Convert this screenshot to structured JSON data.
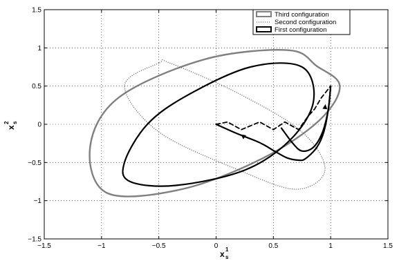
{
  "chart_data": {
    "type": "line",
    "xlim": [
      -1.5,
      1.5
    ],
    "ylim": [
      -1.5,
      1.5
    ],
    "xticks": [
      "−1.5",
      "−1",
      "−0.5",
      "0",
      "0.5",
      "1",
      "1.5"
    ],
    "yticks": [
      "−1.5",
      "−1",
      "−0.5",
      "0",
      "0.5",
      "1",
      "1.5"
    ],
    "xlabel": "x",
    "xlabel_sup": "1",
    "xlabel_sub": "s",
    "ylabel": "x",
    "ylabel_sup": "2",
    "ylabel_sub": "s",
    "grid": true,
    "grid_style": "dotted",
    "legend_placement": "top-right",
    "colors": {
      "third": "#808080",
      "second": "#666666",
      "first": "#000000"
    },
    "series": [
      {
        "name": "Third configuration",
        "style": "solid-gray",
        "x": [
          0.88,
          1.08,
          0.9,
          0.4,
          -0.3,
          -0.95,
          -1.1,
          -0.85,
          -0.1,
          0.63,
          0.88
        ],
        "y": [
          0.76,
          0.5,
          0.05,
          -0.45,
          -0.85,
          -0.9,
          -0.3,
          0.35,
          0.85,
          0.97,
          0.76
        ]
      },
      {
        "name": "Second configuration",
        "style": "dotted",
        "x": [
          -0.5,
          -0.8,
          -0.5,
          0.2,
          0.7,
          0.95,
          0.75,
          0.2,
          -0.4,
          -0.5
        ],
        "y": [
          0.8,
          0.5,
          -0.1,
          -0.6,
          -0.85,
          -0.6,
          -0.1,
          0.4,
          0.8,
          0.8
        ]
      },
      {
        "name": "First configuration",
        "style": "solid-black",
        "x": [
          -0.25,
          -0.6,
          -0.8,
          -0.75,
          -0.35,
          0.25,
          0.65,
          0.85,
          0.75,
          0.3,
          -0.25
        ],
        "y": [
          0.38,
          0.0,
          -0.5,
          -0.75,
          -0.8,
          -0.6,
          -0.2,
          0.3,
          0.75,
          0.75,
          0.38
        ]
      }
    ],
    "extra_paths": [
      {
        "style": "solid-black",
        "x": [
          0.0,
          0.18,
          0.38,
          0.52,
          0.62,
          0.72,
          0.78,
          0.88,
          0.94,
          0.98,
          1.0
        ],
        "y": [
          0.0,
          -0.12,
          -0.24,
          -0.36,
          -0.44,
          -0.47,
          -0.45,
          -0.3,
          -0.1,
          0.2,
          0.5
        ]
      },
      {
        "style": "solid-black",
        "x": [
          1.0,
          0.98,
          0.93,
          0.85,
          0.75,
          0.67,
          0.57
        ],
        "y": [
          0.5,
          0.2,
          -0.1,
          -0.3,
          -0.35,
          -0.25,
          -0.05
        ]
      },
      {
        "style": "dashed-black",
        "x": [
          0.0,
          0.1,
          0.22,
          0.38,
          0.5,
          0.6,
          0.72,
          0.8,
          0.86,
          0.92,
          1.0
        ],
        "y": [
          0.0,
          0.03,
          -0.07,
          0.03,
          -0.07,
          0.03,
          -0.07,
          0.1,
          0.2,
          0.35,
          0.5
        ]
      }
    ],
    "arrows": [
      {
        "x": 0.95,
        "y": 0.2,
        "dx": 0.02,
        "dy": 0.2
      },
      {
        "x": 0.25,
        "y": -0.17,
        "dx": -0.08,
        "dy": 0.06
      }
    ]
  }
}
